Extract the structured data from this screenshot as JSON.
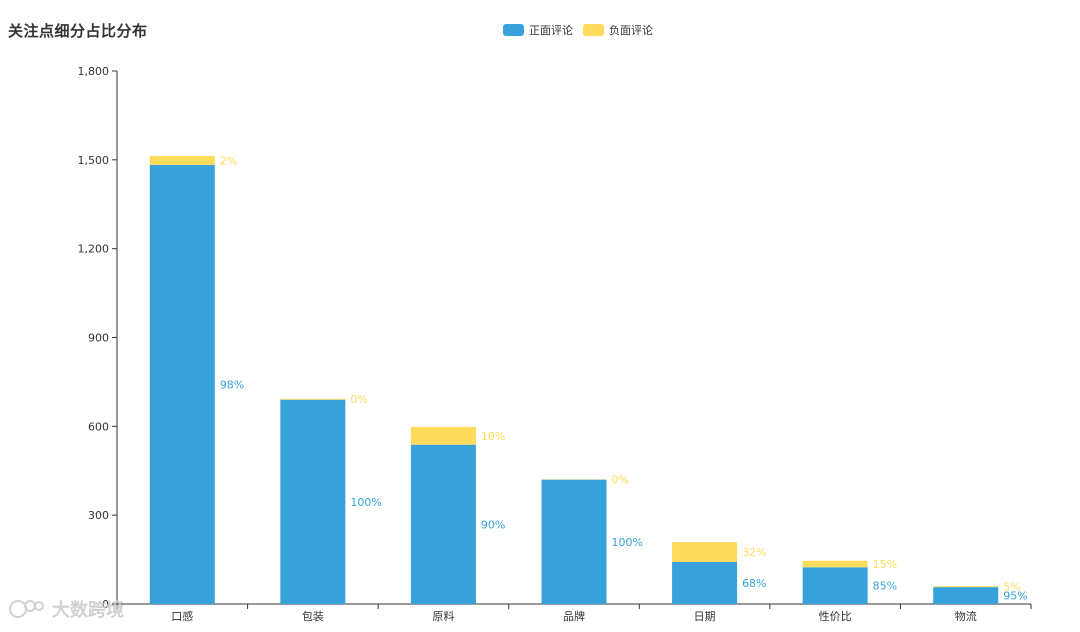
{
  "chart_data": {
    "type": "bar",
    "stacked": true,
    "title": "关注点细分占比分布",
    "categories": [
      "口感",
      "包装",
      "原料",
      "品牌",
      "日期",
      "性价比",
      "物流"
    ],
    "series": [
      {
        "name": "正面评论",
        "color": "#37a2da",
        "values": [
          1483,
          690,
          538,
          420,
          142,
          124,
          57
        ],
        "labels": [
          "98%",
          "100%",
          "90%",
          "100%",
          "68%",
          "85%",
          "95%"
        ]
      },
      {
        "name": "负面评论",
        "color": "#ffdb5c",
        "values": [
          30,
          3,
          60,
          1,
          67,
          22,
          3
        ],
        "labels": [
          "2%",
          "0%",
          "10%",
          "0%",
          "32%",
          "15%",
          "5%"
        ]
      }
    ],
    "yTicks": [
      "0",
      "300",
      "600",
      "900",
      "1,200",
      "1,500",
      "1,800"
    ],
    "ylim": [
      0,
      1800
    ],
    "grid": false,
    "legend_position": "top-center"
  },
  "watermark": {
    "text": "大数跨境"
  }
}
